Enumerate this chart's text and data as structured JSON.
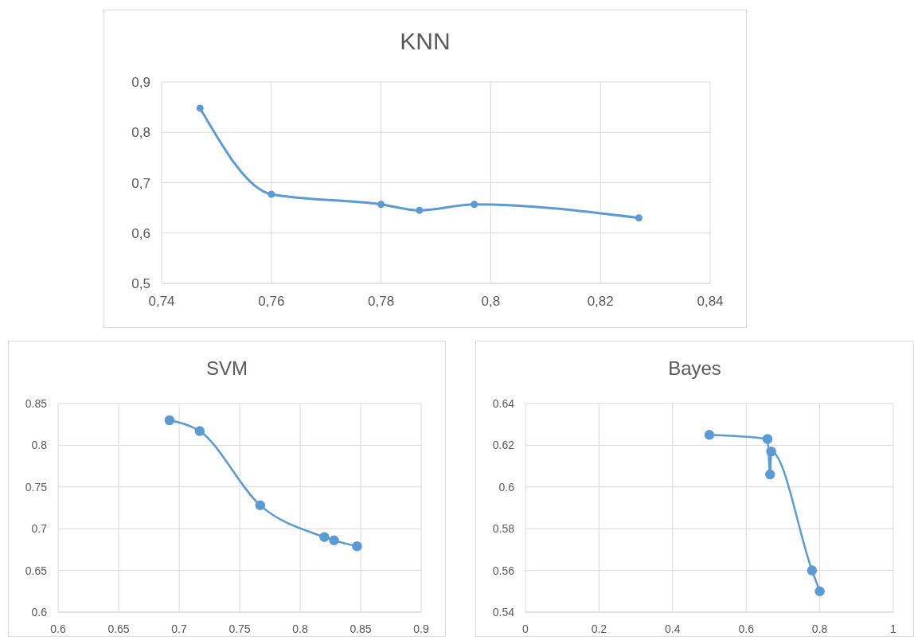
{
  "chart_data": [
    {
      "type": "line",
      "title": "KNN",
      "marker": "circle",
      "grid": true,
      "series": [
        {
          "color": "#5b9bd5",
          "x": [
            0.747,
            0.76,
            0.78,
            0.787,
            0.797,
            0.827
          ],
          "values": [
            0.848,
            0.677,
            0.657,
            0.645,
            0.657,
            0.63
          ]
        }
      ],
      "xlim": [
        0.74,
        0.84
      ],
      "xticks": [
        {
          "value": 0.74,
          "label": "0,74"
        },
        {
          "value": 0.76,
          "label": "0,76"
        },
        {
          "value": 0.78,
          "label": "0,78"
        },
        {
          "value": 0.8,
          "label": "0,8"
        },
        {
          "value": 0.82,
          "label": "0,82"
        },
        {
          "value": 0.84,
          "label": "0,84"
        }
      ],
      "ylim": [
        0.5,
        0.9
      ],
      "yticks": [
        {
          "value": 0.5,
          "label": "0,5"
        },
        {
          "value": 0.6,
          "label": "0,6"
        },
        {
          "value": 0.7,
          "label": "0,7"
        },
        {
          "value": 0.8,
          "label": "0,8"
        },
        {
          "value": 0.9,
          "label": "0,9"
        }
      ]
    },
    {
      "type": "line",
      "title": "SVM",
      "marker": "circle",
      "grid": true,
      "series": [
        {
          "color": "#5b9bd5",
          "x": [
            0.692,
            0.717,
            0.767,
            0.82,
            0.828,
            0.847
          ],
          "values": [
            0.83,
            0.817,
            0.728,
            0.69,
            0.686,
            0.679
          ]
        }
      ],
      "xlim": [
        0.6,
        0.9
      ],
      "xticks": [
        0.6,
        0.65,
        0.7,
        0.75,
        0.8,
        0.85,
        0.9
      ],
      "ylim": [
        0.6,
        0.85
      ],
      "yticks": [
        0.6,
        0.65,
        0.7,
        0.75,
        0.8,
        0.85
      ]
    },
    {
      "type": "line",
      "title": "Bayes",
      "marker": "circle",
      "grid": true,
      "series": [
        {
          "color": "#5b9bd5",
          "x": [
            0.5,
            0.658,
            0.665,
            0.668,
            0.779,
            0.8
          ],
          "values": [
            0.625,
            0.623,
            0.606,
            0.617,
            0.56,
            0.55
          ]
        }
      ],
      "xlim": [
        0,
        1
      ],
      "xticks": [
        0,
        0.2,
        0.4,
        0.6,
        0.8,
        1
      ],
      "ylim": [
        0.54,
        0.64
      ],
      "yticks": [
        0.54,
        0.56,
        0.58,
        0.6,
        0.62,
        0.64
      ]
    }
  ]
}
